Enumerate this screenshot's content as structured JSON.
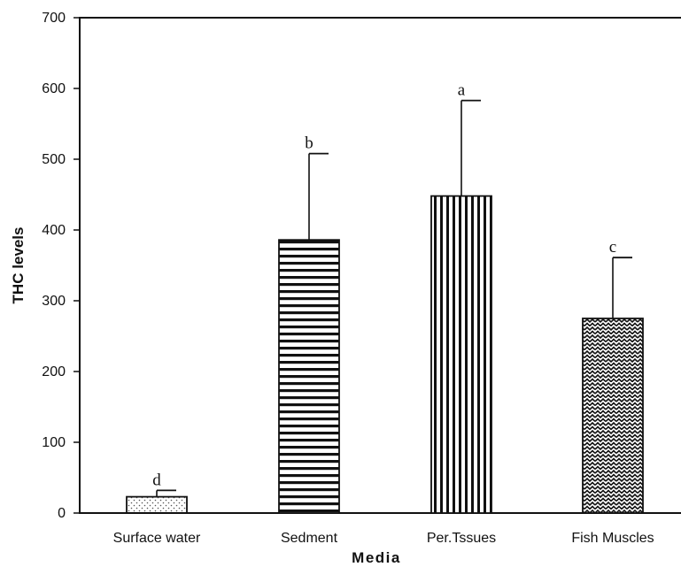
{
  "chart_data": {
    "type": "bar",
    "title": "",
    "xlabel": "Media",
    "ylabel": "THC levels",
    "ylim": [
      0,
      700
    ],
    "yticks": [
      0,
      100,
      200,
      300,
      400,
      500,
      600,
      700
    ],
    "grid": false,
    "legend": "none",
    "categories": [
      "Surface water",
      "Sedment",
      "Per.Tssues",
      "Fish Muscles"
    ],
    "values": [
      23,
      386,
      448,
      275
    ],
    "error_upper": [
      32,
      508,
      583,
      361
    ],
    "significance_letters": [
      "d",
      "b",
      "a",
      "c"
    ],
    "patterns": [
      "dots",
      "horizontal-lines",
      "vertical-lines",
      "zigzag"
    ],
    "colors": {
      "bar_stroke": "#111111",
      "pattern_ink": "#111111",
      "background": "#ffffff"
    }
  }
}
